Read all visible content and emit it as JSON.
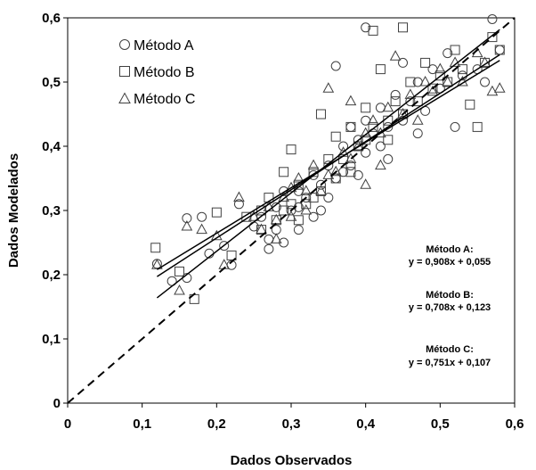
{
  "chart_data": {
    "type": "scatter",
    "title": "",
    "xlabel": "Dados Observados",
    "ylabel": "Dados Modelados",
    "xlim": [
      0,
      0.6
    ],
    "ylim": [
      0,
      0.6
    ],
    "x_ticks": [
      "0",
      "0,1",
      "0,2",
      "0,3",
      "0,4",
      "0,5",
      "0,6"
    ],
    "y_ticks": [
      "0",
      "0,1",
      "0,2",
      "0,3",
      "0,4",
      "0,5",
      "0,6"
    ],
    "grid": false,
    "legend_position": "top-left",
    "marker_color": "#404040",
    "line_color": "#000000",
    "series": [
      {
        "name": "Método A",
        "marker": "circle",
        "points": [
          [
            0.12,
            0.217
          ],
          [
            0.14,
            0.19
          ],
          [
            0.16,
            0.288
          ],
          [
            0.16,
            0.195
          ],
          [
            0.18,
            0.29
          ],
          [
            0.19,
            0.233
          ],
          [
            0.21,
            0.245
          ],
          [
            0.22,
            0.215
          ],
          [
            0.23,
            0.31
          ],
          [
            0.25,
            0.275
          ],
          [
            0.26,
            0.29
          ],
          [
            0.27,
            0.255
          ],
          [
            0.28,
            0.305
          ],
          [
            0.28,
            0.27
          ],
          [
            0.29,
            0.33
          ],
          [
            0.3,
            0.3
          ],
          [
            0.31,
            0.305
          ],
          [
            0.31,
            0.33
          ],
          [
            0.32,
            0.32
          ],
          [
            0.33,
            0.29
          ],
          [
            0.33,
            0.355
          ],
          [
            0.34,
            0.34
          ],
          [
            0.35,
            0.32
          ],
          [
            0.35,
            0.37
          ],
          [
            0.36,
            0.35
          ],
          [
            0.37,
            0.36
          ],
          [
            0.37,
            0.4
          ],
          [
            0.38,
            0.37
          ],
          [
            0.39,
            0.355
          ],
          [
            0.39,
            0.41
          ],
          [
            0.4,
            0.39
          ],
          [
            0.4,
            0.44
          ],
          [
            0.41,
            0.42
          ],
          [
            0.42,
            0.4
          ],
          [
            0.42,
            0.46
          ],
          [
            0.43,
            0.43
          ],
          [
            0.44,
            0.48
          ],
          [
            0.45,
            0.44
          ],
          [
            0.45,
            0.53
          ],
          [
            0.46,
            0.47
          ],
          [
            0.47,
            0.5
          ],
          [
            0.48,
            0.455
          ],
          [
            0.49,
            0.52
          ],
          [
            0.5,
            0.49
          ],
          [
            0.51,
            0.545
          ],
          [
            0.52,
            0.43
          ],
          [
            0.53,
            0.51
          ],
          [
            0.55,
            0.52
          ],
          [
            0.56,
            0.5
          ],
          [
            0.57,
            0.598
          ],
          [
            0.58,
            0.55
          ],
          [
            0.36,
            0.525
          ],
          [
            0.29,
            0.25
          ],
          [
            0.34,
            0.3
          ],
          [
            0.38,
            0.43
          ],
          [
            0.43,
            0.38
          ],
          [
            0.47,
            0.42
          ],
          [
            0.27,
            0.24
          ],
          [
            0.31,
            0.27
          ],
          [
            0.4,
            0.585
          ]
        ]
      },
      {
        "name": "Método B",
        "marker": "square",
        "points": [
          [
            0.118,
            0.242
          ],
          [
            0.15,
            0.205
          ],
          [
            0.17,
            0.162
          ],
          [
            0.2,
            0.297
          ],
          [
            0.22,
            0.23
          ],
          [
            0.24,
            0.29
          ],
          [
            0.26,
            0.27
          ],
          [
            0.27,
            0.32
          ],
          [
            0.28,
            0.285
          ],
          [
            0.29,
            0.36
          ],
          [
            0.29,
            0.3
          ],
          [
            0.3,
            0.31
          ],
          [
            0.3,
            0.395
          ],
          [
            0.31,
            0.34
          ],
          [
            0.32,
            0.31
          ],
          [
            0.33,
            0.36
          ],
          [
            0.33,
            0.32
          ],
          [
            0.34,
            0.33
          ],
          [
            0.35,
            0.38
          ],
          [
            0.36,
            0.35
          ],
          [
            0.36,
            0.415
          ],
          [
            0.37,
            0.38
          ],
          [
            0.38,
            0.43
          ],
          [
            0.38,
            0.36
          ],
          [
            0.39,
            0.4
          ],
          [
            0.4,
            0.41
          ],
          [
            0.4,
            0.46
          ],
          [
            0.41,
            0.43
          ],
          [
            0.42,
            0.52
          ],
          [
            0.43,
            0.44
          ],
          [
            0.43,
            0.41
          ],
          [
            0.44,
            0.47
          ],
          [
            0.45,
            0.585
          ],
          [
            0.45,
            0.45
          ],
          [
            0.46,
            0.5
          ],
          [
            0.47,
            0.47
          ],
          [
            0.48,
            0.53
          ],
          [
            0.49,
            0.49
          ],
          [
            0.5,
            0.51
          ],
          [
            0.51,
            0.5
          ],
          [
            0.52,
            0.55
          ],
          [
            0.53,
            0.52
          ],
          [
            0.54,
            0.465
          ],
          [
            0.55,
            0.43
          ],
          [
            0.56,
            0.53
          ],
          [
            0.57,
            0.57
          ],
          [
            0.58,
            0.55
          ],
          [
            0.34,
            0.45
          ],
          [
            0.31,
            0.285
          ],
          [
            0.41,
            0.58
          ],
          [
            0.26,
            0.3
          ]
        ]
      },
      {
        "name": "Método C",
        "marker": "triangle",
        "points": [
          [
            0.12,
            0.215
          ],
          [
            0.15,
            0.175
          ],
          [
            0.16,
            0.275
          ],
          [
            0.18,
            0.27
          ],
          [
            0.2,
            0.26
          ],
          [
            0.21,
            0.215
          ],
          [
            0.23,
            0.32
          ],
          [
            0.25,
            0.29
          ],
          [
            0.26,
            0.27
          ],
          [
            0.27,
            0.305
          ],
          [
            0.28,
            0.285
          ],
          [
            0.29,
            0.32
          ],
          [
            0.3,
            0.29
          ],
          [
            0.31,
            0.35
          ],
          [
            0.32,
            0.33
          ],
          [
            0.32,
            0.3
          ],
          [
            0.33,
            0.37
          ],
          [
            0.34,
            0.33
          ],
          [
            0.35,
            0.355
          ],
          [
            0.35,
            0.49
          ],
          [
            0.36,
            0.36
          ],
          [
            0.37,
            0.39
          ],
          [
            0.38,
            0.38
          ],
          [
            0.39,
            0.4
          ],
          [
            0.4,
            0.34
          ],
          [
            0.4,
            0.42
          ],
          [
            0.41,
            0.44
          ],
          [
            0.42,
            0.42
          ],
          [
            0.43,
            0.46
          ],
          [
            0.44,
            0.54
          ],
          [
            0.45,
            0.45
          ],
          [
            0.46,
            0.48
          ],
          [
            0.47,
            0.44
          ],
          [
            0.48,
            0.5
          ],
          [
            0.49,
            0.485
          ],
          [
            0.5,
            0.52
          ],
          [
            0.51,
            0.5
          ],
          [
            0.52,
            0.53
          ],
          [
            0.53,
            0.5
          ],
          [
            0.55,
            0.545
          ],
          [
            0.56,
            0.53
          ],
          [
            0.57,
            0.485
          ],
          [
            0.58,
            0.49
          ],
          [
            0.3,
            0.335
          ],
          [
            0.38,
            0.47
          ],
          [
            0.42,
            0.37
          ],
          [
            0.28,
            0.255
          ]
        ]
      }
    ],
    "fit_lines": [
      {
        "name": "Método A",
        "slope": 0.908,
        "intercept": 0.055,
        "x_range": [
          0.12,
          0.58
        ]
      },
      {
        "name": "Método B",
        "slope": 0.708,
        "intercept": 0.123,
        "x_range": [
          0.12,
          0.58
        ]
      },
      {
        "name": "Método C",
        "slope": 0.751,
        "intercept": 0.107,
        "x_range": [
          0.12,
          0.58
        ]
      }
    ],
    "reference_line": {
      "style": "dashed",
      "slope": 1,
      "intercept": 0
    },
    "annotations": [
      {
        "label": "Método A:",
        "equation": "y = 0,908x + 0,055"
      },
      {
        "label": "Método B:",
        "equation": "y = 0,708x + 0,123"
      },
      {
        "label": "Método C:",
        "equation": "y = 0,751x + 0,107"
      }
    ]
  }
}
